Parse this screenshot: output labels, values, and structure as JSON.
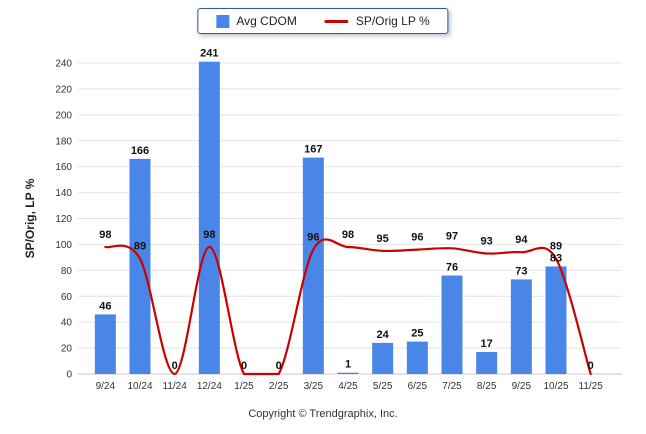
{
  "legend": {
    "items": [
      {
        "label": "Avg CDOM"
      },
      {
        "label": "SP/Orig LP %"
      }
    ]
  },
  "y_axis": {
    "label": "SP/Orig, LP %"
  },
  "footer": {
    "copyright": "Copyright © Trendgraphix, Inc."
  },
  "colors": {
    "bar": "#4a86e8",
    "line": "#cc0000",
    "grid": "#e4e4e4",
    "baseline": "#c9c9c9"
  },
  "chart_data": {
    "type": "bar",
    "categories": [
      "9/24",
      "10/24",
      "11/24",
      "12/24",
      "1/25",
      "2/25",
      "3/25",
      "4/25",
      "5/25",
      "6/25",
      "7/25",
      "8/25",
      "9/25",
      "10/25",
      "11/25"
    ],
    "series": [
      {
        "name": "Avg CDOM",
        "type": "bar",
        "color": "#4a86e8",
        "values": [
          46,
          166,
          0,
          241,
          0,
          0,
          167,
          1,
          24,
          25,
          76,
          17,
          73,
          83,
          0
        ]
      },
      {
        "name": "SP/Orig LP %",
        "type": "line",
        "color": "#cc0000",
        "values": [
          98,
          89,
          0,
          98,
          0,
          0,
          96,
          98,
          95,
          96,
          97,
          93,
          94,
          89,
          0
        ]
      }
    ],
    "title": "",
    "xlabel": "",
    "ylabel": "SP/Orig, LP %",
    "ylim": [
      0,
      240
    ],
    "ytick_step": 20,
    "grid": true,
    "legend_position": "top-center"
  }
}
